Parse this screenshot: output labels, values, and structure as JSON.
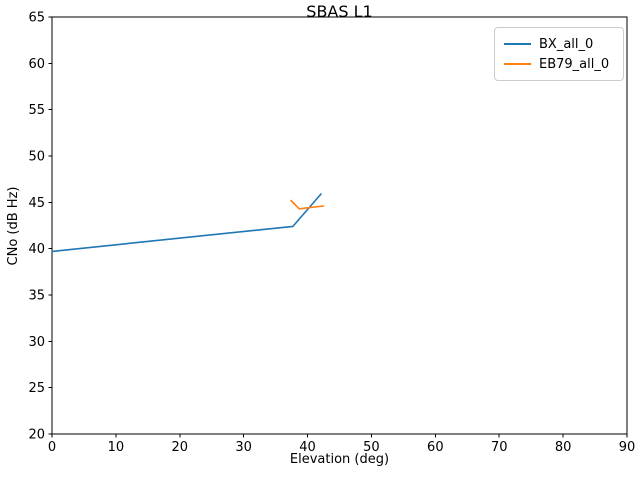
{
  "chart_data": {
    "type": "line",
    "title": "SBAS L1",
    "xlabel": "Elevation (deg)",
    "ylabel": "CNo (dB Hz)",
    "xlim": [
      0,
      90
    ],
    "ylim": [
      20,
      65
    ],
    "x_ticks": [
      0,
      10,
      20,
      30,
      40,
      50,
      60,
      70,
      80,
      90
    ],
    "y_ticks": [
      20,
      25,
      30,
      35,
      40,
      45,
      50,
      55,
      60,
      65
    ],
    "grid": false,
    "legend_position": "upper right",
    "background_color": "#ffffff",
    "axis_color": "#000000",
    "legend_border_color": "#cccccc",
    "series": [
      {
        "name": "BX_all_0",
        "color": "#1f77b4",
        "points": [
          [
            0,
            39.7
          ],
          [
            37.7,
            42.4
          ],
          [
            42.1,
            45.9
          ]
        ]
      },
      {
        "name": "EB79_all_0",
        "color": "#ff7f0e",
        "points": [
          [
            37.4,
            45.2
          ],
          [
            38.7,
            44.3
          ],
          [
            42.5,
            44.6
          ]
        ]
      }
    ]
  }
}
